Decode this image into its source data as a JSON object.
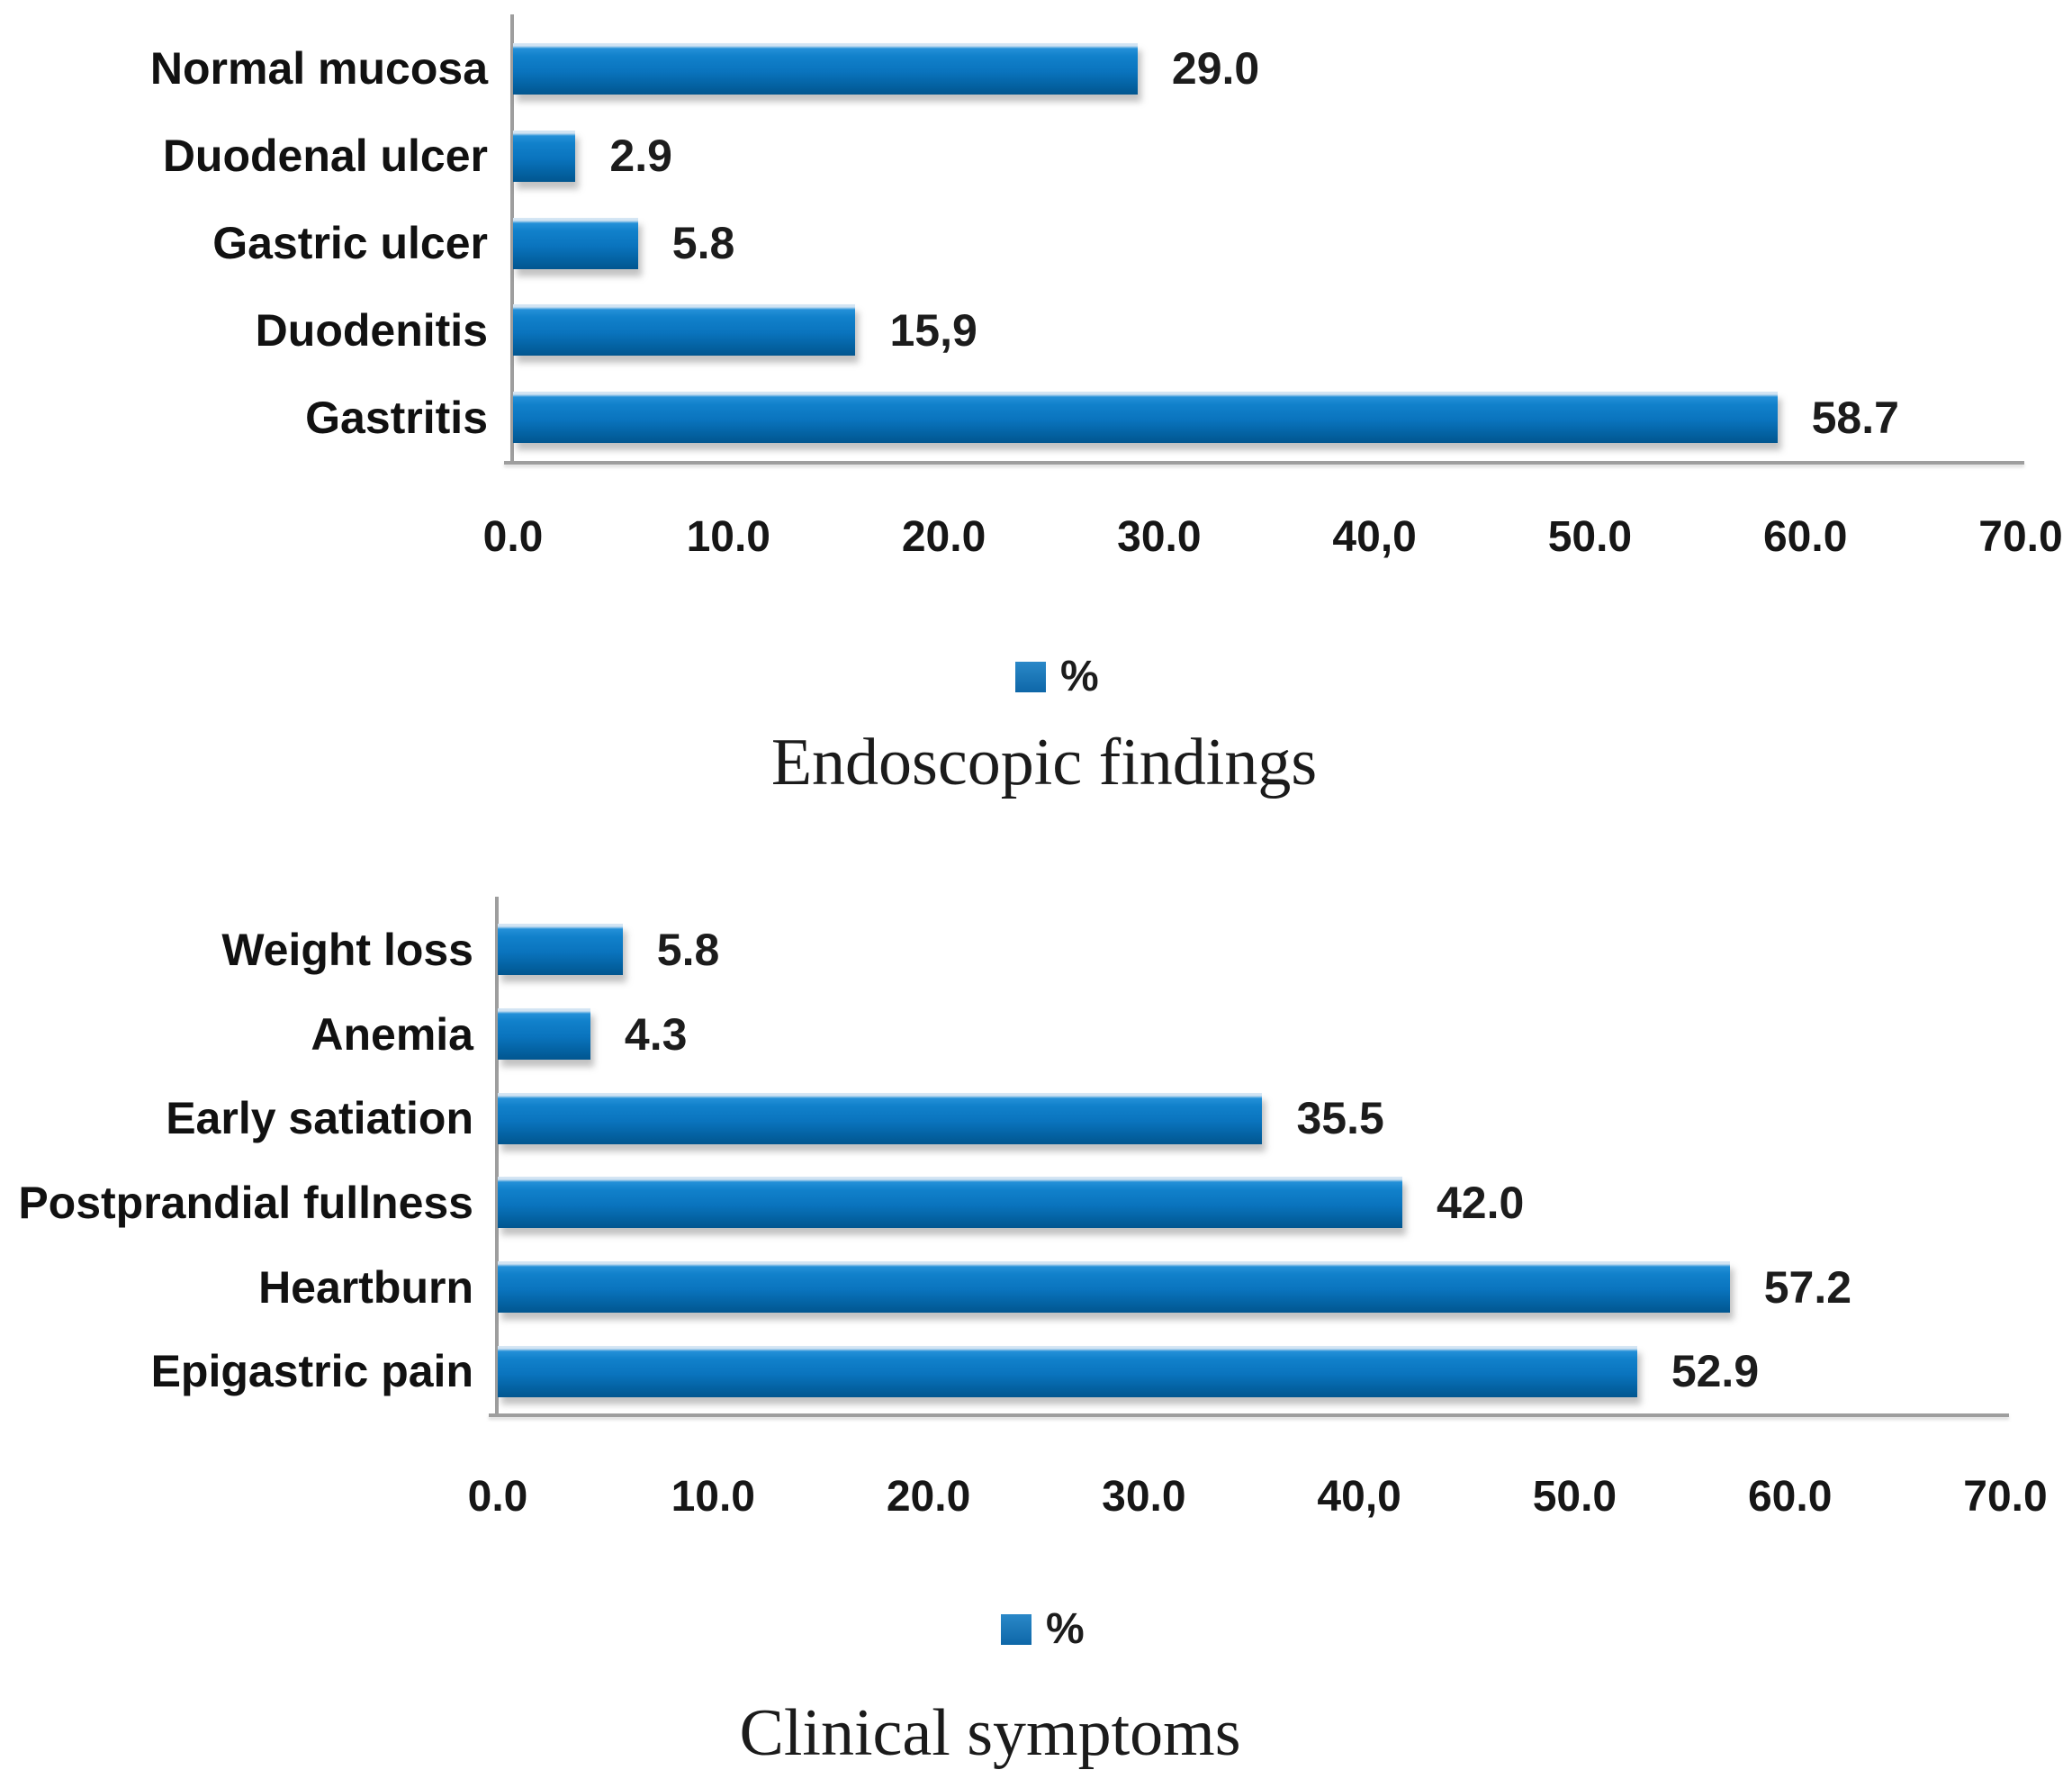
{
  "colors": {
    "bar_blue_mid": "#0a74be",
    "bar_blue_top": "#2490d8",
    "bar_blue_bottom": "#02568f",
    "bar_highlight": "#d6e7f5",
    "legend_blue": "#1878ba",
    "axis_gray": "#9e9e9e",
    "text_dark": "#1c1c1c",
    "background": "#ffffff"
  },
  "chart_data": [
    {
      "type": "bar",
      "orientation": "horizontal",
      "title": "Endoscopic findings",
      "legend": [
        "%"
      ],
      "legend_position": "below-axis",
      "categories": [
        "Normal mucosa",
        "Duodenal ulcer",
        "Gastric ulcer",
        "Duodenitis",
        "Gastritis"
      ],
      "values": [
        29.0,
        2.9,
        5.8,
        15.9,
        58.7
      ],
      "value_labels": [
        "29.0",
        "2.9",
        "5.8",
        "15,9",
        "58.7"
      ],
      "x_ticks": [
        "0.0",
        "10.0",
        "20.0",
        "30.0",
        "40,0",
        "50.0",
        "60.0",
        "70.0"
      ],
      "x_tick_values": [
        0,
        10,
        20,
        30,
        40,
        50,
        60,
        70
      ],
      "xlim": [
        0,
        70
      ],
      "grid": false,
      "bar_color": "#0a74be"
    },
    {
      "type": "bar",
      "orientation": "horizontal",
      "title": "Clinical symptoms",
      "legend": [
        "%"
      ],
      "legend_position": "below-axis",
      "categories": [
        "Weight loss",
        "Anemia",
        "Early satiation",
        "Postprandial fullness",
        "Heartburn",
        "Epigastric pain"
      ],
      "values": [
        5.8,
        4.3,
        35.5,
        42.0,
        57.2,
        52.9
      ],
      "value_labels": [
        "5.8",
        "4.3",
        "35.5",
        "42.0",
        "57.2",
        "52.9"
      ],
      "x_ticks": [
        "0.0",
        "10.0",
        "20.0",
        "30.0",
        "40,0",
        "50.0",
        "60.0",
        "70.0"
      ],
      "x_tick_values": [
        0,
        10,
        20,
        30,
        40,
        50,
        60,
        70
      ],
      "xlim": [
        0,
        70
      ],
      "grid": false,
      "bar_color": "#0a74be"
    }
  ]
}
